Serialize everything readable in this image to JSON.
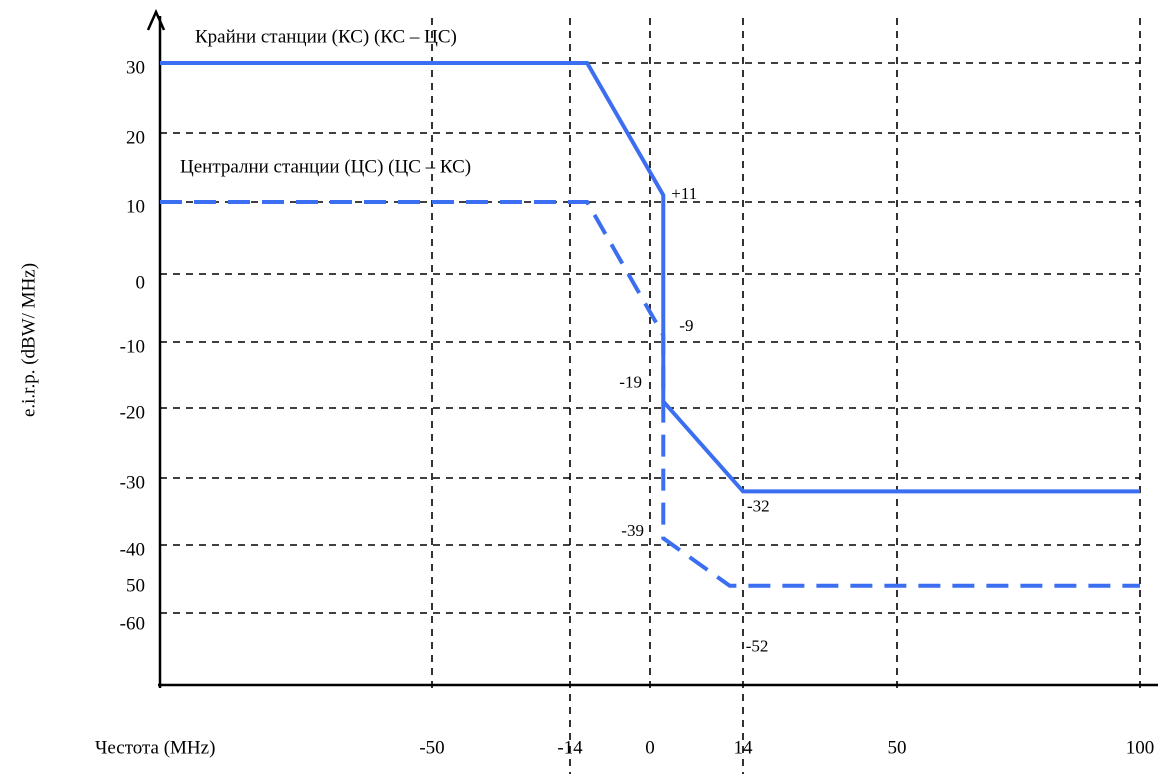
{
  "chart_data": {
    "type": "line",
    "x_label": "Честота (MHz)",
    "y_label": "e.i.r.p. (dBW/ MHz)",
    "xlim": [
      -120,
      100
    ],
    "xticks": [
      -50,
      -14,
      0,
      14,
      50,
      100
    ],
    "ylim": [
      -70,
      38
    ],
    "yticks": [
      30,
      20,
      10,
      0,
      -10,
      -20,
      -30,
      -40,
      -60
    ],
    "extra_y_label": "50",
    "grid": true,
    "series": [
      {
        "name": "Крайни станции (КС) (КС – ЦС)",
        "color": "#3b6ef0",
        "dash": false,
        "x": [
          -120,
          -11,
          2,
          2,
          14,
          100
        ],
        "values": [
          30,
          30,
          11,
          -19,
          -32,
          -32
        ],
        "value_labels": [
          null,
          null,
          "+11",
          "-19",
          "-32",
          null
        ]
      },
      {
        "name": "Централни станции (ЦС) (ЦС – КС)",
        "color": "#3b6ef0",
        "dash": true,
        "x": [
          -120,
          -11,
          2,
          2,
          12,
          100
        ],
        "values": [
          10,
          10,
          -9,
          -39,
          -52,
          -52
        ],
        "value_labels": [
          null,
          null,
          "-9",
          "-39",
          "-52",
          null
        ]
      }
    ]
  }
}
